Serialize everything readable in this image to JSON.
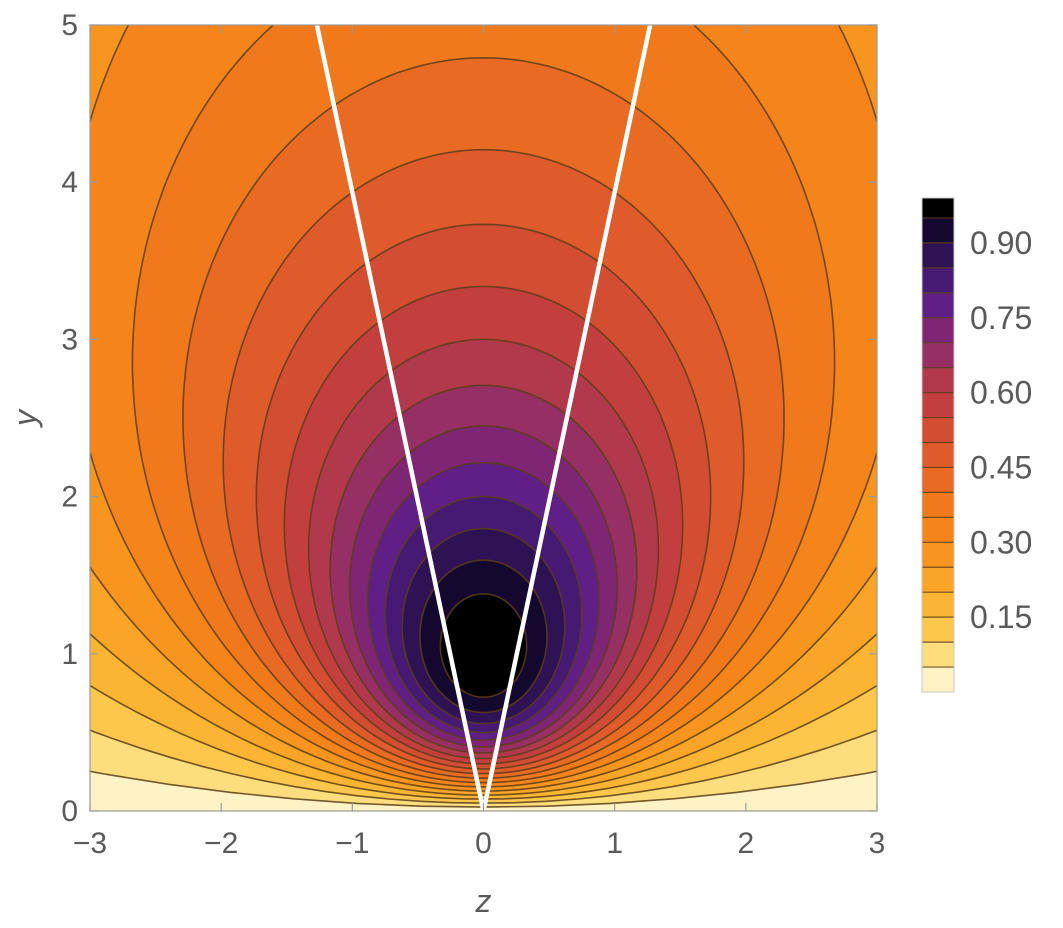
{
  "chart_data": {
    "type": "contour",
    "title": "",
    "xlabel": "z",
    "ylabel": "y",
    "xlim": [
      -3,
      3
    ],
    "ylim": [
      0,
      5
    ],
    "x_ticks": [
      {
        "value": -3,
        "label": "−3"
      },
      {
        "value": -2,
        "label": "−2"
      },
      {
        "value": -1,
        "label": "−1"
      },
      {
        "value": 0,
        "label": "0"
      },
      {
        "value": 1,
        "label": "1"
      },
      {
        "value": 2,
        "label": "2"
      },
      {
        "value": 3,
        "label": "3"
      }
    ],
    "y_ticks": [
      {
        "value": 0,
        "label": "0"
      },
      {
        "value": 1,
        "label": "1"
      },
      {
        "value": 2,
        "label": "2"
      },
      {
        "value": 3,
        "label": "3"
      },
      {
        "value": 4,
        "label": "4"
      },
      {
        "value": 5,
        "label": "5"
      }
    ],
    "contour_levels": [
      0.05,
      0.1,
      0.15,
      0.2,
      0.25,
      0.3,
      0.35,
      0.4,
      0.45,
      0.5,
      0.55,
      0.6,
      0.65,
      0.7,
      0.75,
      0.8,
      0.85,
      0.9,
      0.95
    ],
    "value_range": [
      0,
      0.99
    ],
    "lines": [
      {
        "name": "left boundary",
        "x": [
          0,
          -1.27
        ],
        "y": [
          0,
          5
        ],
        "color": "#ffffff"
      },
      {
        "name": "right boundary",
        "x": [
          0,
          1.27
        ],
        "y": [
          0,
          5
        ],
        "color": "#ffffff"
      }
    ],
    "legend": {
      "placement": "right",
      "range": [
        0,
        0.99
      ],
      "ticks": [
        {
          "value": 0.15,
          "label": "0.15"
        },
        {
          "value": 0.3,
          "label": "0.30"
        },
        {
          "value": 0.45,
          "label": "0.45"
        },
        {
          "value": 0.6,
          "label": "0.60"
        },
        {
          "value": 0.75,
          "label": "0.75"
        },
        {
          "value": 0.9,
          "label": "0.90"
        }
      ]
    },
    "band_colors": [
      "#fff2c4",
      "#fedd7c",
      "#fdc74c",
      "#fcb533",
      "#faa527",
      "#f8951f",
      "#f5841a",
      "#f07a1b",
      "#e86a23",
      "#df5b2b",
      "#d24d32",
      "#c23f3d",
      "#b03a4b",
      "#962f63",
      "#7e2674",
      "#5f1f84",
      "#461a72",
      "#2e1254",
      "#15082e",
      "#000000"
    ],
    "contour_line_color": "#5a3d18",
    "grid": false
  }
}
